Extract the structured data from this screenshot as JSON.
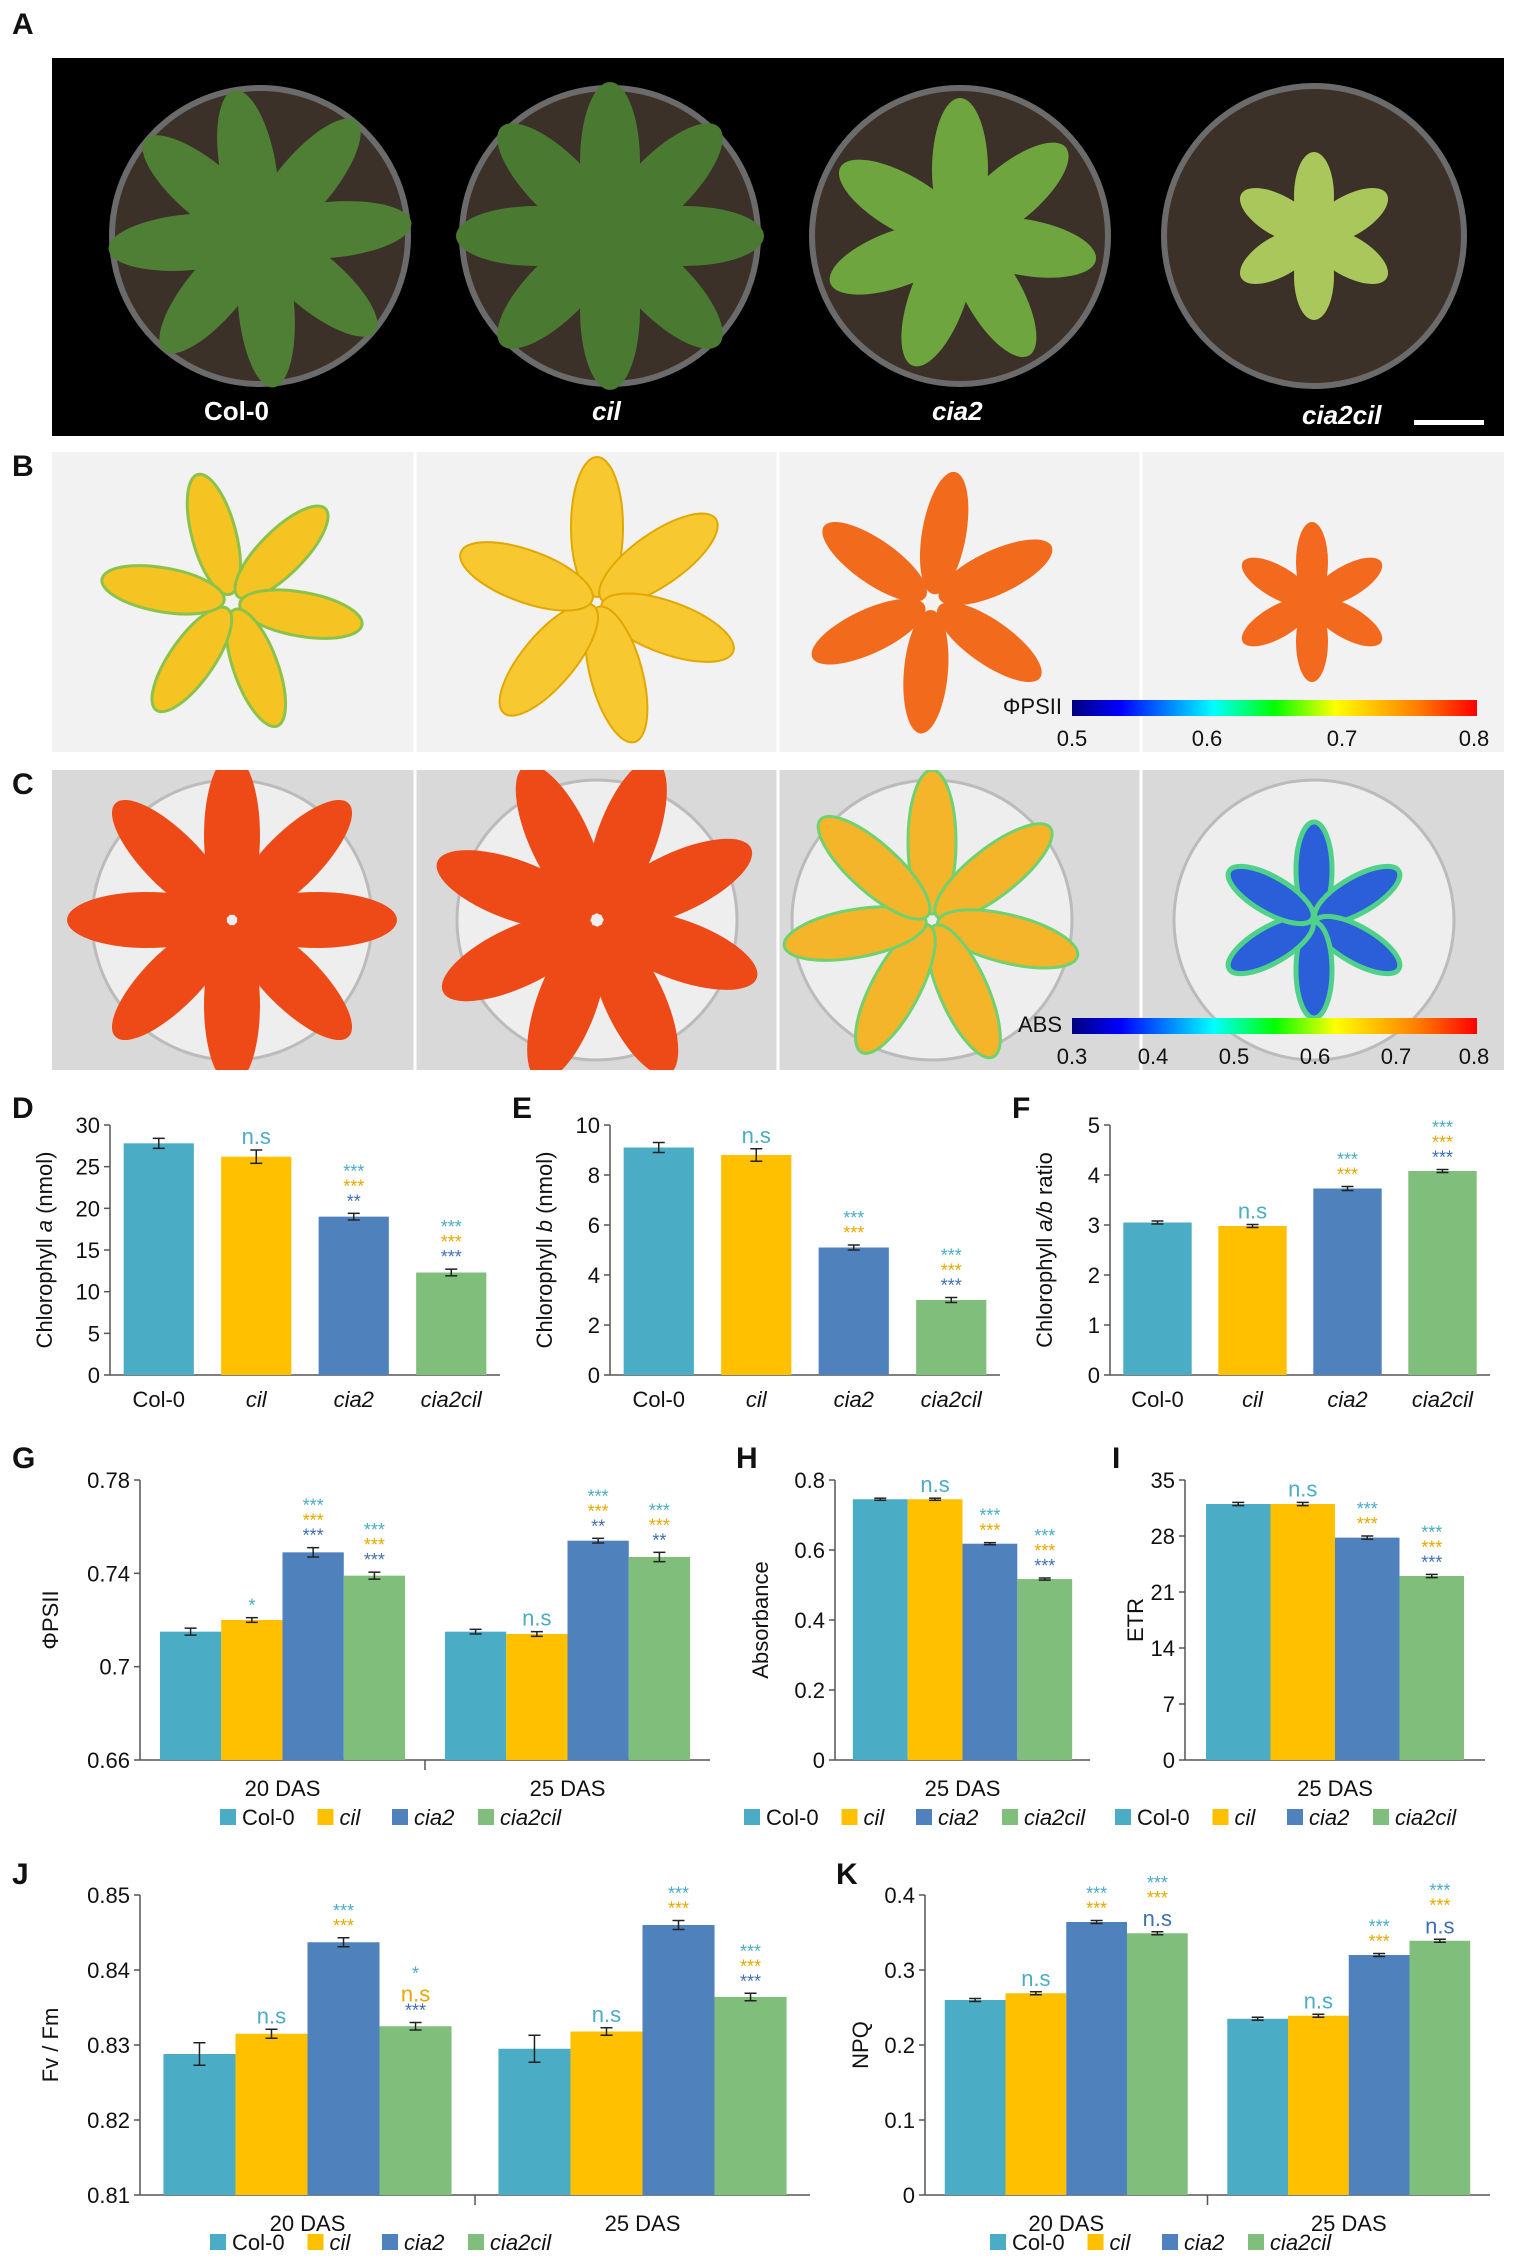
{
  "panel_letters": [
    "A",
    "B",
    "C",
    "D",
    "E",
    "F",
    "G",
    "H",
    "I",
    "J",
    "K"
  ],
  "photo_labels": [
    "Col-0",
    "cil",
    "cia2",
    "cia2cil"
  ],
  "scale_b": {
    "label": "ΦPSII",
    "ticks": [
      "0.5",
      "0.6",
      "0.7",
      "0.8"
    ]
  },
  "scale_c": {
    "label": "ABS",
    "ticks": [
      "0.3",
      "0.4",
      "0.5",
      "0.6",
      "0.7",
      "0.8"
    ]
  },
  "genotypes": [
    "Col-0",
    "cil",
    "cia2",
    "cia2cil"
  ],
  "colors": {
    "col0": "#4bacc6",
    "cil": "#ffc000",
    "cia2": "#4f81bd",
    "cia2cil": "#7fbf7b",
    "sig_teal": "#4bacc6",
    "sig_gold": "#e8a800",
    "sig_blue": "#3f6fb5"
  },
  "chart_data": [
    {
      "id": "D",
      "type": "bar",
      "ylabel": "Chlorophyll a (nmol)",
      "ylabel_parts": [
        "Chlorophyll ",
        "a",
        " (nmol)"
      ],
      "categories": [
        "Col-0",
        "cil",
        "cia2",
        "cia2cil"
      ],
      "values": [
        27.8,
        26.2,
        19.0,
        12.3
      ],
      "errors": [
        0.6,
        0.8,
        0.4,
        0.4
      ],
      "ylim": [
        0,
        30
      ],
      "yticks": [
        "0",
        "5",
        "10",
        "15",
        "20",
        "25",
        "30"
      ],
      "annotations": [
        [],
        [
          {
            "t": "n.s",
            "c": "sig_teal"
          }
        ],
        [
          {
            "t": "***",
            "c": "sig_teal"
          },
          {
            "t": "***",
            "c": "sig_gold"
          },
          {
            "t": "**",
            "c": "sig_blue"
          }
        ],
        [
          {
            "t": "***",
            "c": "sig_teal"
          },
          {
            "t": "***",
            "c": "sig_gold"
          },
          {
            "t": "***",
            "c": "sig_blue"
          }
        ]
      ]
    },
    {
      "id": "E",
      "type": "bar",
      "ylabel": "Chlorophyll b (nmol)",
      "ylabel_parts": [
        "Chlorophyll ",
        "b",
        " (nmol)"
      ],
      "categories": [
        "Col-0",
        "cil",
        "cia2",
        "cia2cil"
      ],
      "values": [
        9.1,
        8.8,
        5.1,
        3.0
      ],
      "errors": [
        0.2,
        0.25,
        0.1,
        0.1
      ],
      "ylim": [
        0,
        10
      ],
      "yticks": [
        "0",
        "2",
        "4",
        "6",
        "8",
        "10"
      ],
      "annotations": [
        [],
        [
          {
            "t": "n.s",
            "c": "sig_teal"
          }
        ],
        [
          {
            "t": "***",
            "c": "sig_teal"
          },
          {
            "t": "***",
            "c": "sig_gold"
          }
        ],
        [
          {
            "t": "***",
            "c": "sig_teal"
          },
          {
            "t": "***",
            "c": "sig_gold"
          },
          {
            "t": "***",
            "c": "sig_blue"
          }
        ]
      ]
    },
    {
      "id": "F",
      "type": "bar",
      "ylabel": "Chlorophyll a/b ratio",
      "ylabel_parts": [
        "Chlorophyll ",
        "a/b",
        " ratio"
      ],
      "categories": [
        "Col-0",
        "cil",
        "cia2",
        "cia2cil"
      ],
      "values": [
        3.05,
        2.98,
        3.73,
        4.08
      ],
      "errors": [
        0.03,
        0.03,
        0.04,
        0.03
      ],
      "ylim": [
        0,
        5
      ],
      "yticks": [
        "0",
        "1",
        "2",
        "3",
        "4",
        "5"
      ],
      "annotations": [
        [],
        [
          {
            "t": "n.s",
            "c": "sig_teal"
          }
        ],
        [
          {
            "t": "***",
            "c": "sig_teal"
          },
          {
            "t": "***",
            "c": "sig_gold"
          }
        ],
        [
          {
            "t": "***",
            "c": "sig_teal"
          },
          {
            "t": "***",
            "c": "sig_gold"
          },
          {
            "t": "***",
            "c": "sig_blue"
          }
        ]
      ]
    },
    {
      "id": "G",
      "type": "bar",
      "ylabel": "ΦPSII",
      "groups": [
        "20 DAS",
        "25 DAS"
      ],
      "series": [
        {
          "name": "Col-0",
          "values": [
            0.715,
            0.715
          ],
          "errors": [
            0.0015,
            0.001
          ]
        },
        {
          "name": "cil",
          "values": [
            0.72,
            0.714
          ],
          "errors": [
            0.001,
            0.001
          ]
        },
        {
          "name": "cia2",
          "values": [
            0.749,
            0.754
          ],
          "errors": [
            0.002,
            0.001
          ]
        },
        {
          "name": "cia2cil",
          "values": [
            0.739,
            0.747
          ],
          "errors": [
            0.0015,
            0.002
          ]
        }
      ],
      "ylim": [
        0.66,
        0.78
      ],
      "yticks": [
        "0.66",
        "0.7",
        "0.74",
        "0.78"
      ],
      "annotations": [
        [
          [],
          [
            {
              "t": "*",
              "c": "sig_teal"
            }
          ],
          [
            {
              "t": "***",
              "c": "sig_teal"
            },
            {
              "t": "***",
              "c": "sig_gold"
            },
            {
              "t": "***",
              "c": "sig_blue"
            }
          ],
          [
            {
              "t": "***",
              "c": "sig_teal"
            },
            {
              "t": "***",
              "c": "sig_gold"
            },
            {
              "t": "***",
              "c": "sig_blue"
            }
          ]
        ],
        [
          [],
          [
            {
              "t": "n.s",
              "c": "sig_teal"
            }
          ],
          [
            {
              "t": "***",
              "c": "sig_teal"
            },
            {
              "t": "***",
              "c": "sig_gold"
            },
            {
              "t": "**",
              "c": "sig_blue"
            }
          ],
          [
            {
              "t": "***",
              "c": "sig_teal"
            },
            {
              "t": "***",
              "c": "sig_gold"
            },
            {
              "t": "**",
              "c": "sig_blue"
            }
          ]
        ]
      ],
      "legend": true
    },
    {
      "id": "H",
      "type": "bar",
      "ylabel": "Absorbance",
      "groups": [
        "25 DAS"
      ],
      "series": [
        {
          "name": "Col-0",
          "values": [
            0.745
          ],
          "errors": [
            0.003
          ]
        },
        {
          "name": "cil",
          "values": [
            0.745
          ],
          "errors": [
            0.003
          ]
        },
        {
          "name": "cia2",
          "values": [
            0.618
          ],
          "errors": [
            0.003
          ]
        },
        {
          "name": "cia2cil",
          "values": [
            0.517
          ],
          "errors": [
            0.003
          ]
        }
      ],
      "ylim": [
        0,
        0.8
      ],
      "yticks": [
        "0",
        "0.2",
        "0.4",
        "0.6",
        "0.8"
      ],
      "annotations": [
        [
          [],
          [
            {
              "t": "n.s",
              "c": "sig_teal"
            }
          ],
          [
            {
              "t": "***",
              "c": "sig_teal"
            },
            {
              "t": "***",
              "c": "sig_gold"
            }
          ],
          [
            {
              "t": "***",
              "c": "sig_teal"
            },
            {
              "t": "***",
              "c": "sig_gold"
            },
            {
              "t": "***",
              "c": "sig_blue"
            }
          ]
        ]
      ],
      "legend": true
    },
    {
      "id": "I",
      "type": "bar",
      "ylabel": "ETR",
      "groups": [
        "25 DAS"
      ],
      "series": [
        {
          "name": "Col-0",
          "values": [
            32.0
          ],
          "errors": [
            0.2
          ]
        },
        {
          "name": "cil",
          "values": [
            32.0
          ],
          "errors": [
            0.2
          ]
        },
        {
          "name": "cia2",
          "values": [
            27.8
          ],
          "errors": [
            0.2
          ]
        },
        {
          "name": "cia2cil",
          "values": [
            23.0
          ],
          "errors": [
            0.2
          ]
        }
      ],
      "ylim": [
        0,
        35
      ],
      "yticks": [
        "0",
        "7",
        "14",
        "21",
        "28",
        "35"
      ],
      "annotations": [
        [
          [],
          [
            {
              "t": "n.s",
              "c": "sig_teal"
            }
          ],
          [
            {
              "t": "***",
              "c": "sig_teal"
            },
            {
              "t": "***",
              "c": "sig_gold"
            }
          ],
          [
            {
              "t": "***",
              "c": "sig_teal"
            },
            {
              "t": "***",
              "c": "sig_gold"
            },
            {
              "t": "***",
              "c": "sig_blue"
            }
          ]
        ]
      ],
      "legend": true
    },
    {
      "id": "J",
      "type": "bar",
      "ylabel": "Fv / Fm",
      "groups": [
        "20 DAS",
        "25 DAS"
      ],
      "series": [
        {
          "name": "Col-0",
          "values": [
            0.8288,
            0.8295
          ],
          "errors": [
            0.0015,
            0.0018
          ]
        },
        {
          "name": "cil",
          "values": [
            0.8315,
            0.8318
          ],
          "errors": [
            0.0006,
            0.0005
          ]
        },
        {
          "name": "cia2",
          "values": [
            0.8437,
            0.846
          ],
          "errors": [
            0.0006,
            0.0006
          ]
        },
        {
          "name": "cia2cil",
          "values": [
            0.8325,
            0.8364
          ],
          "errors": [
            0.0005,
            0.0005
          ]
        }
      ],
      "ylim": [
        0.81,
        0.85
      ],
      "yticks": [
        "0.81",
        "0.82",
        "0.83",
        "0.84",
        "0.85"
      ],
      "annotations": [
        [
          [],
          [
            {
              "t": "n.s",
              "c": "sig_teal"
            }
          ],
          [
            {
              "t": "***",
              "c": "sig_teal"
            },
            {
              "t": "***",
              "c": "sig_gold"
            }
          ],
          [
            {
              "t": "*",
              "c": "sig_teal"
            },
            {
              "t": "n.s",
              "c": "sig_gold"
            },
            {
              "t": "***",
              "c": "sig_blue"
            }
          ]
        ],
        [
          [],
          [
            {
              "t": "n.s",
              "c": "sig_teal"
            }
          ],
          [
            {
              "t": "***",
              "c": "sig_teal"
            },
            {
              "t": "***",
              "c": "sig_gold"
            }
          ],
          [
            {
              "t": "***",
              "c": "sig_teal"
            },
            {
              "t": "***",
              "c": "sig_gold"
            },
            {
              "t": "***",
              "c": "sig_blue"
            }
          ]
        ]
      ],
      "legend": true
    },
    {
      "id": "K",
      "type": "bar",
      "ylabel": "NPQ",
      "groups": [
        "20 DAS",
        "25 DAS"
      ],
      "series": [
        {
          "name": "Col-0",
          "values": [
            0.26,
            0.235
          ],
          "errors": [
            0.002,
            0.002
          ]
        },
        {
          "name": "cil",
          "values": [
            0.269,
            0.239
          ],
          "errors": [
            0.002,
            0.002
          ]
        },
        {
          "name": "cia2",
          "values": [
            0.364,
            0.32
          ],
          "errors": [
            0.002,
            0.002
          ]
        },
        {
          "name": "cia2cil",
          "values": [
            0.349,
            0.339
          ],
          "errors": [
            0.002,
            0.002
          ]
        }
      ],
      "ylim": [
        0,
        0.4
      ],
      "yticks": [
        "0",
        "0.1",
        "0.2",
        "0.3",
        "0.4"
      ],
      "annotations": [
        [
          [],
          [
            {
              "t": "n.s",
              "c": "sig_teal"
            }
          ],
          [
            {
              "t": "***",
              "c": "sig_teal"
            },
            {
              "t": "***",
              "c": "sig_gold"
            }
          ],
          [
            {
              "t": "***",
              "c": "sig_teal"
            },
            {
              "t": "***",
              "c": "sig_gold"
            },
            {
              "t": "n.s",
              "c": "sig_blue"
            }
          ]
        ],
        [
          [],
          [
            {
              "t": "n.s",
              "c": "sig_teal"
            }
          ],
          [
            {
              "t": "***",
              "c": "sig_teal"
            },
            {
              "t": "***",
              "c": "sig_gold"
            }
          ],
          [
            {
              "t": "***",
              "c": "sig_teal"
            },
            {
              "t": "***",
              "c": "sig_gold"
            },
            {
              "t": "n.s",
              "c": "sig_blue"
            }
          ]
        ]
      ],
      "legend": true
    }
  ]
}
